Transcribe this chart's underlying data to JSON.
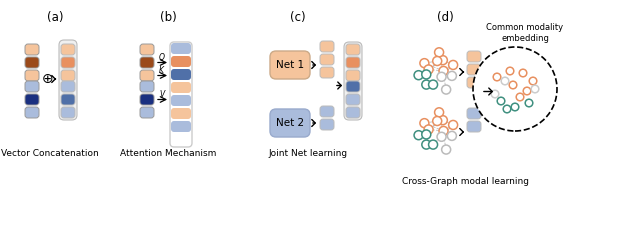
{
  "bg_color": "#ffffff",
  "orange_light": "#F5C49C",
  "orange_mid": "#E89060",
  "orange_dark": "#9B4A1A",
  "blue_light": "#AABCDC",
  "blue_mid": "#5070A8",
  "blue_dark": "#1A3080",
  "graph_orange": "#E89060",
  "graph_teal": "#409080",
  "graph_gray": "#BBBBBB",
  "labels": {
    "a": "(a)",
    "b": "(b)",
    "c": "(c)",
    "d": "(d)"
  },
  "captions": {
    "a": "Vector Concatenation",
    "b": "Attention Mechanism",
    "c": "Joint Net learning",
    "d": "Cross-Graph modal learning"
  },
  "embedding_label": "Common modality\nembedding"
}
